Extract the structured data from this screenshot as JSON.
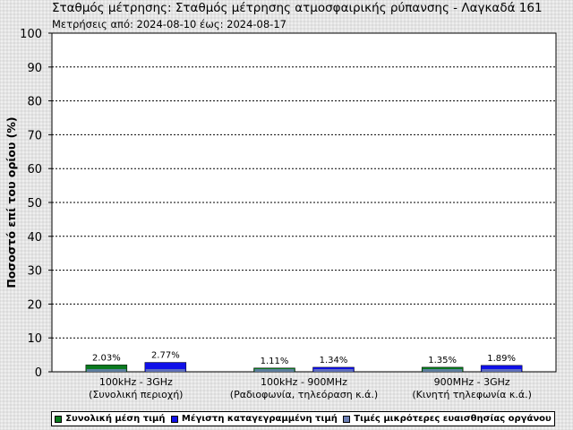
{
  "header": {
    "title": "Σταθμός μέτρησης: Σταθμός μέτρησης ατμοσφαιρικής ρύπανσης - Λαγκαδά 161",
    "subtitle": "Μετρήσεις από: 2024-08-10 έως: 2024-08-17"
  },
  "chart_data": {
    "type": "bar",
    "title": "Σταθμός μέτρησης: Σταθμός μέτρησης ατμοσφαιρικής ρύπανσης - Λαγκαδά 161",
    "subtitle": "Μετρήσεις από: 2024-08-10 έως: 2024-08-17",
    "ylabel": "Ποσοστό επί του ορίου (%)",
    "xlabel": "",
    "ylim": [
      0,
      100
    ],
    "yticks": [
      "0",
      "10",
      "20",
      "30",
      "40",
      "50",
      "60",
      "70",
      "80",
      "90",
      "100"
    ],
    "grid": true,
    "categories": [
      {
        "line1": "100kHz - 3GHz",
        "line2": "(Συνολική περιοχή)"
      },
      {
        "line1": "100kHz - 900MHz",
        "line2": "(Ραδιοφωνία, τηλεόραση κ.ά.)"
      },
      {
        "line1": "900MHz - 3GHz",
        "line2": "(Κινητή τηλεφωνία κ.ά.)"
      }
    ],
    "series": [
      {
        "name": "Συνολική μέση τιμή",
        "color": "#0a7a1e",
        "values": [
          2.03,
          1.11,
          1.35
        ],
        "labels": [
          "2.03%",
          "1.11%",
          "1.35%"
        ]
      },
      {
        "name": "Μέγιστη καταγεγραμμένη τιμή",
        "color": "#1010e8",
        "values": [
          2.77,
          1.34,
          1.89
        ],
        "labels": [
          "2.77%",
          "1.34%",
          "1.89%"
        ]
      }
    ],
    "sensitivity_series": {
      "name": "Τιμές μικρότερες ευαισθησίας οργάνου",
      "color": "#6c7fb5"
    },
    "legend_position": "bottom"
  }
}
